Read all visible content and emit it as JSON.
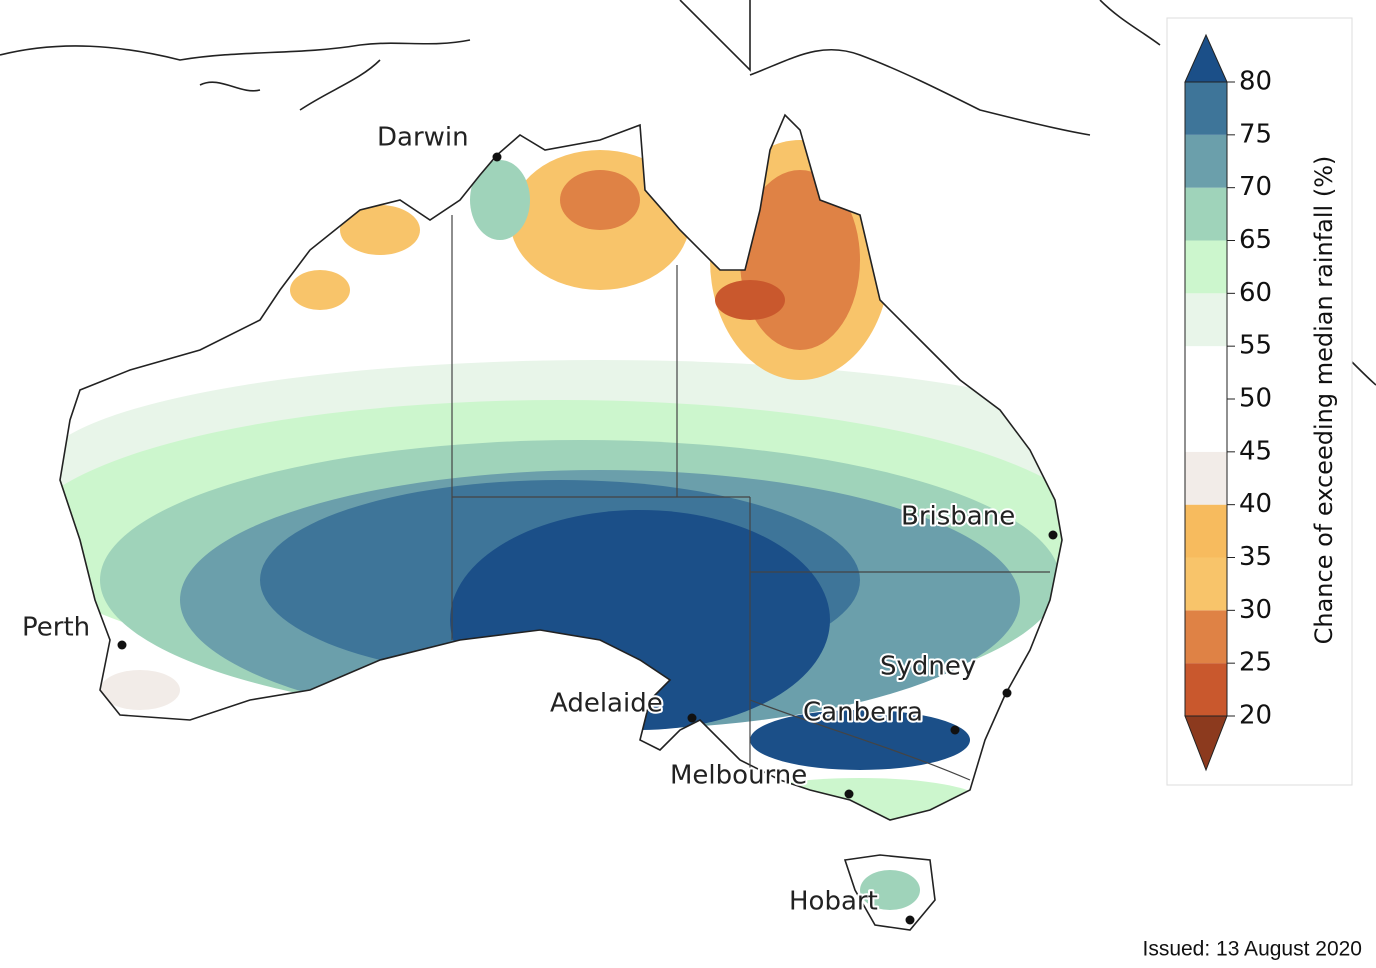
{
  "map": {
    "cities": [
      {
        "name": "Darwin"
      },
      {
        "name": "Perth"
      },
      {
        "name": "Adelaide"
      },
      {
        "name": "Melbourne"
      },
      {
        "name": "Canberra"
      },
      {
        "name": "Sydney"
      },
      {
        "name": "Brisbane"
      },
      {
        "name": "Hobart"
      }
    ],
    "colorbar": {
      "label": "Chance of exceeding median rainfall (%)",
      "ticks": [
        20,
        25,
        30,
        35,
        40,
        45,
        50,
        55,
        60,
        65,
        70,
        75,
        80
      ],
      "colors": [
        "#c9582d",
        "#df8245",
        "#f8c46a",
        "#f7bb5e",
        "#f2ece8",
        "#ffffff",
        "#ffffff",
        "#e8f5e9",
        "#ccf6cd",
        "#9fd3ba",
        "#6b9fab",
        "#3e7599"
      ],
      "under_color": "#8c3a1e",
      "over_color": "#1b4f88"
    },
    "issued": "Issued: 13 August 2020"
  }
}
